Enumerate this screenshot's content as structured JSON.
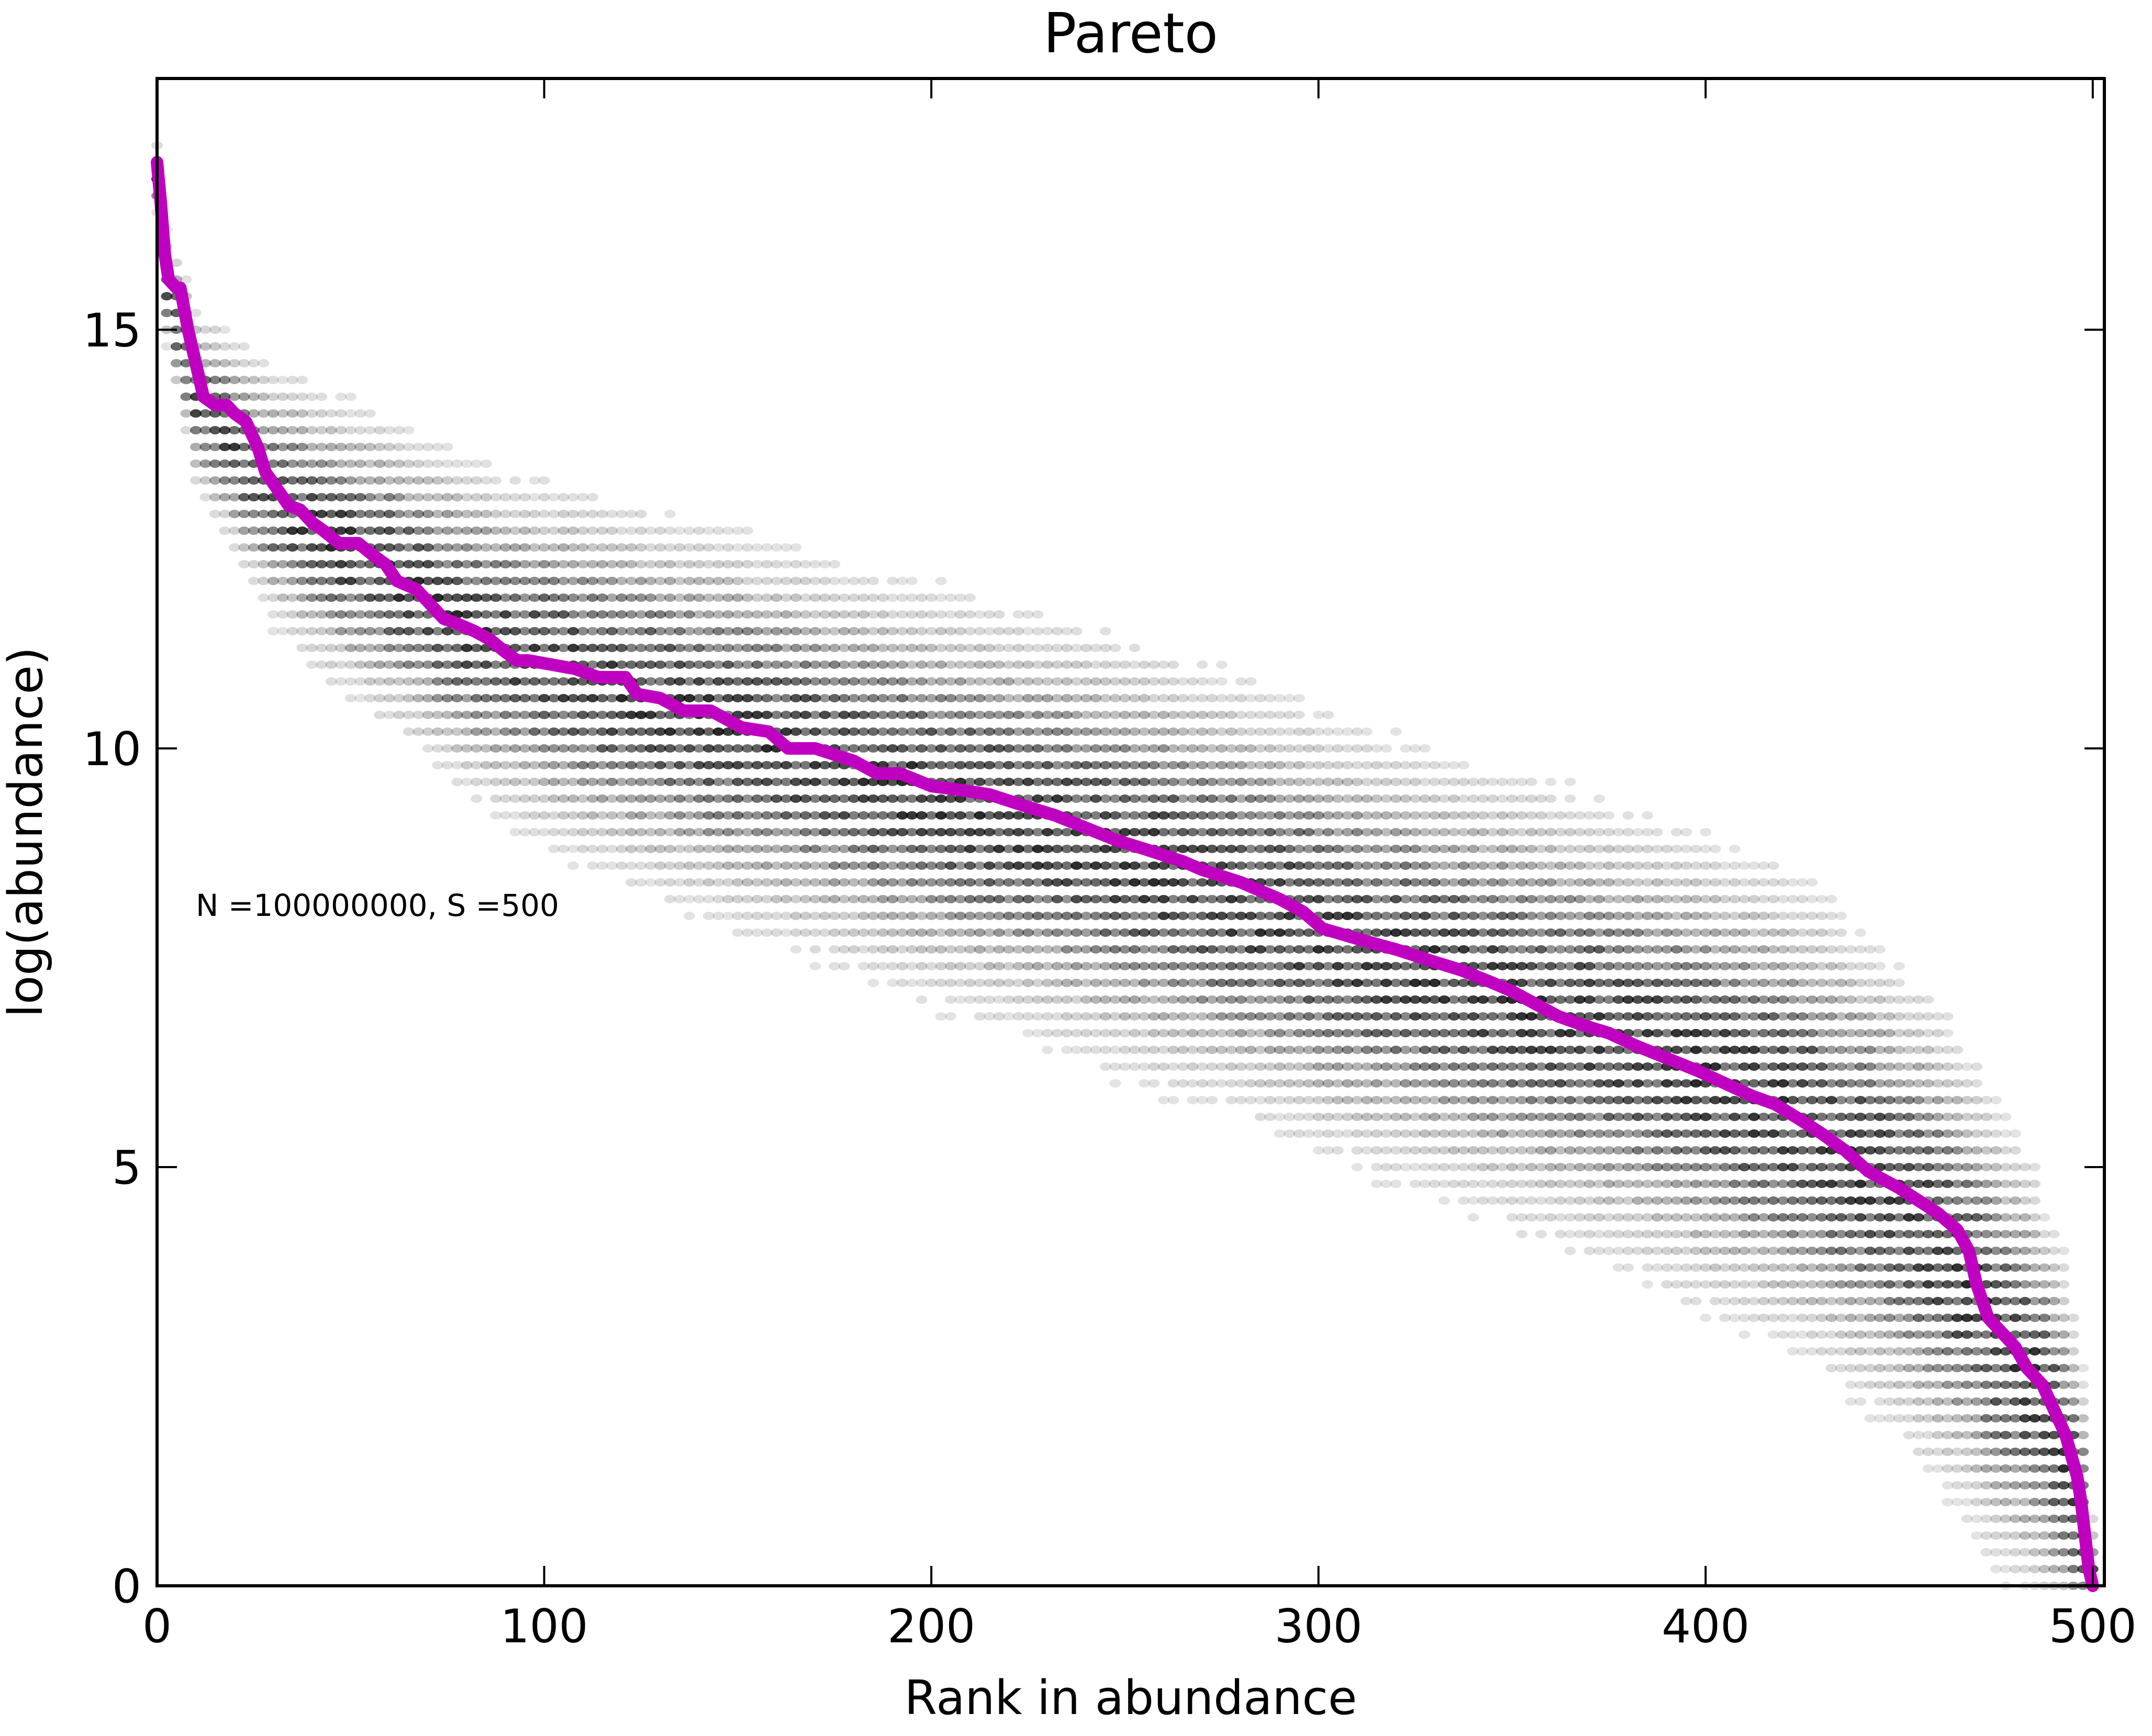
{
  "chart_data": {
    "type": "scatter",
    "title": "Pareto",
    "xlabel": "Rank in abundance",
    "ylabel": "log(abundance)",
    "xlim": [
      0,
      503
    ],
    "ylim": [
      0,
      18
    ],
    "xticks": [
      0,
      100,
      200,
      300,
      400,
      500
    ],
    "yticks": [
      0,
      5,
      10,
      15
    ],
    "grid": false,
    "legend": "none",
    "annotation": "N =100000000, S =500",
    "annotation_pos": {
      "x": 10,
      "y": 8.0
    },
    "colors": {
      "line": "#c000c0",
      "density": "#000000",
      "frame": "#000000"
    },
    "series": [
      {
        "type": "density",
        "x": [
          0,
          2,
          5,
          10,
          20,
          30,
          45,
          60,
          75,
          90,
          100,
          125,
          150,
          175,
          200,
          225,
          250,
          275,
          300,
          325,
          350,
          375,
          400,
          425,
          450,
          465,
          475,
          485,
          492,
          497,
          500
        ],
        "center": [
          16.8,
          15.6,
          15.1,
          14.2,
          13.6,
          13.0,
          12.5,
          12.1,
          11.6,
          11.2,
          11.0,
          10.6,
          10.2,
          9.8,
          9.45,
          9.1,
          8.7,
          8.3,
          7.8,
          7.4,
          7.0,
          6.6,
          6.1,
          5.6,
          4.6,
          3.8,
          3.0,
          2.4,
          1.6,
          0.9,
          0.0
        ],
        "spread": [
          0.2,
          0.3,
          0.4,
          0.5,
          0.6,
          0.7,
          0.8,
          0.85,
          0.9,
          0.95,
          1.0,
          1.05,
          1.1,
          1.1,
          1.15,
          1.15,
          1.2,
          1.2,
          1.2,
          1.2,
          1.25,
          1.25,
          1.3,
          1.3,
          1.3,
          1.3,
          1.3,
          1.2,
          1.1,
          0.9,
          0.4
        ]
      },
      {
        "type": "step-line",
        "x": [
          0,
          1,
          2,
          3,
          5,
          6,
          8,
          10,
          12,
          15,
          18,
          20,
          23,
          26,
          28,
          31,
          34,
          37,
          40,
          43,
          47,
          52,
          56,
          59,
          62,
          67,
          71,
          74,
          77,
          82,
          86,
          90,
          93,
          96,
          102,
          108,
          114,
          121,
          124,
          130,
          136,
          143,
          151,
          158,
          163,
          170,
          180,
          186,
          192,
          200,
          208,
          215,
          225,
          232,
          240,
          248,
          255,
          265,
          270,
          280,
          290,
          296,
          301,
          312,
          320,
          330,
          337,
          345,
          350,
          358,
          362,
          368,
          375,
          382,
          390,
          398,
          405,
          412,
          418,
          425,
          430,
          436,
          442,
          450,
          455,
          460,
          465,
          468,
          470,
          473,
          477,
          480,
          483,
          487,
          490,
          493,
          496,
          497,
          498,
          499,
          500
        ],
        "y": [
          17.0,
          16.5,
          15.9,
          15.6,
          15.5,
          15.5,
          15.0,
          14.6,
          14.2,
          14.1,
          14.1,
          14.0,
          13.9,
          13.6,
          13.3,
          13.1,
          12.9,
          12.85,
          12.7,
          12.6,
          12.45,
          12.45,
          12.3,
          12.2,
          12.0,
          11.9,
          11.7,
          11.55,
          11.5,
          11.4,
          11.3,
          11.15,
          11.05,
          11.05,
          11.0,
          10.95,
          10.85,
          10.85,
          10.65,
          10.6,
          10.45,
          10.45,
          10.25,
          10.2,
          10.0,
          10.0,
          9.85,
          9.7,
          9.7,
          9.55,
          9.5,
          9.45,
          9.3,
          9.2,
          9.05,
          8.9,
          8.8,
          8.65,
          8.55,
          8.4,
          8.2,
          8.05,
          7.85,
          7.7,
          7.6,
          7.45,
          7.35,
          7.2,
          7.1,
          6.9,
          6.8,
          6.7,
          6.6,
          6.45,
          6.3,
          6.15,
          6.0,
          5.85,
          5.75,
          5.55,
          5.4,
          5.2,
          4.95,
          4.75,
          4.6,
          4.45,
          4.25,
          4.0,
          3.6,
          3.2,
          3.0,
          2.85,
          2.6,
          2.4,
          2.1,
          1.8,
          1.3,
          1.0,
          0.6,
          0.2,
          0.0
        ]
      }
    ]
  }
}
